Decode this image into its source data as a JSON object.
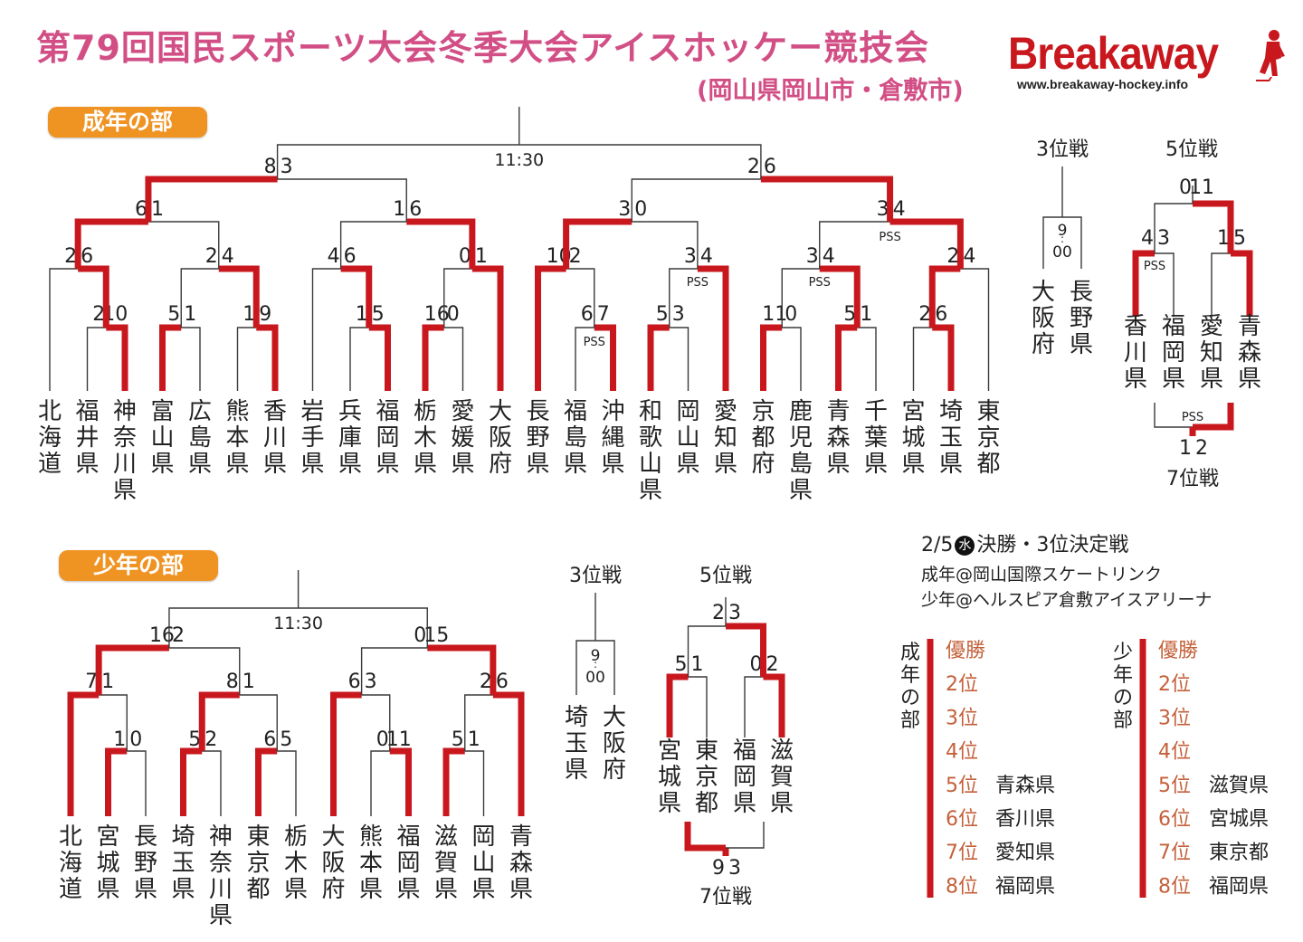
{
  "header": {
    "title": "第79回国民スポーツ大会冬季大会アイスホッケー競技会",
    "subtitle": "(岡山県岡山市・倉敷市)",
    "logo_text": "Breakaway",
    "logo_url": "www.breakaway-hockey.info"
  },
  "colors": {
    "title": "#d24f86",
    "bracket_win": "#c8171d",
    "pill": "#ef9323",
    "rank_label": "#c4603a"
  },
  "adult": {
    "label": "成年の部",
    "final_time": "11:30",
    "final_scores": [
      "8",
      "3",
      "2",
      "6"
    ],
    "teams": [
      "北海道",
      "福井県",
      "神奈川県",
      "富山県",
      "広島県",
      "熊本県",
      "香川県",
      "岩手県",
      "兵庫県",
      "福岡県",
      "栃木県",
      "愛媛県",
      "大阪府",
      "長野県",
      "福島県",
      "沖縄県",
      "和歌山県",
      "岡山県",
      "愛知県",
      "京都府",
      "鹿児島県",
      "青森県",
      "千葉県",
      "宮城県",
      "埼玉県",
      "東京都"
    ],
    "third_place": {
      "label": "3位戦",
      "time": "9:00",
      "teams": [
        "大阪府",
        "長野県"
      ]
    },
    "fifth_place": {
      "label": "5位戦",
      "teams": [
        "香川県",
        "福岡県",
        "愛知県",
        "青森県"
      ],
      "seventh_label": "7位戦"
    }
  },
  "youth": {
    "label": "少年の部",
    "final_time": "11:30",
    "teams": [
      "北海道",
      "宮城県",
      "長野県",
      "埼玉県",
      "神奈川県",
      "東京都",
      "栃木県",
      "大阪府",
      "熊本県",
      "福岡県",
      "滋賀県",
      "岡山県",
      "青森県"
    ],
    "third_place": {
      "label": "3位戦",
      "time": "9:00",
      "teams": [
        "埼玉県",
        "大阪府"
      ]
    },
    "fifth_place": {
      "label": "5位戦",
      "teams": [
        "宮城県",
        "東京都",
        "福岡県",
        "滋賀県"
      ],
      "seventh_label": "7位戦"
    }
  },
  "schedule": {
    "date": "2/5",
    "weekday": "水",
    "title": "決勝・3位決定戦",
    "adult_venue": "成年@岡山国際スケートリンク",
    "youth_venue": "少年@ヘルスピア倉敷アイスアリーナ"
  },
  "standings": [
    {
      "division": "成年の部",
      "rows": [
        [
          "優勝",
          ""
        ],
        [
          "2位",
          ""
        ],
        [
          "3位",
          ""
        ],
        [
          "4位",
          ""
        ],
        [
          "5位",
          "青森県"
        ],
        [
          "6位",
          "香川県"
        ],
        [
          "7位",
          "愛知県"
        ],
        [
          "8位",
          "福岡県"
        ]
      ]
    },
    {
      "division": "少年の部",
      "rows": [
        [
          "優勝",
          ""
        ],
        [
          "2位",
          ""
        ],
        [
          "3位",
          ""
        ],
        [
          "4位",
          ""
        ],
        [
          "5位",
          "滋賀県"
        ],
        [
          "6位",
          "宮城県"
        ],
        [
          "7位",
          "東京都"
        ],
        [
          "8位",
          "福岡県"
        ]
      ]
    }
  ]
}
